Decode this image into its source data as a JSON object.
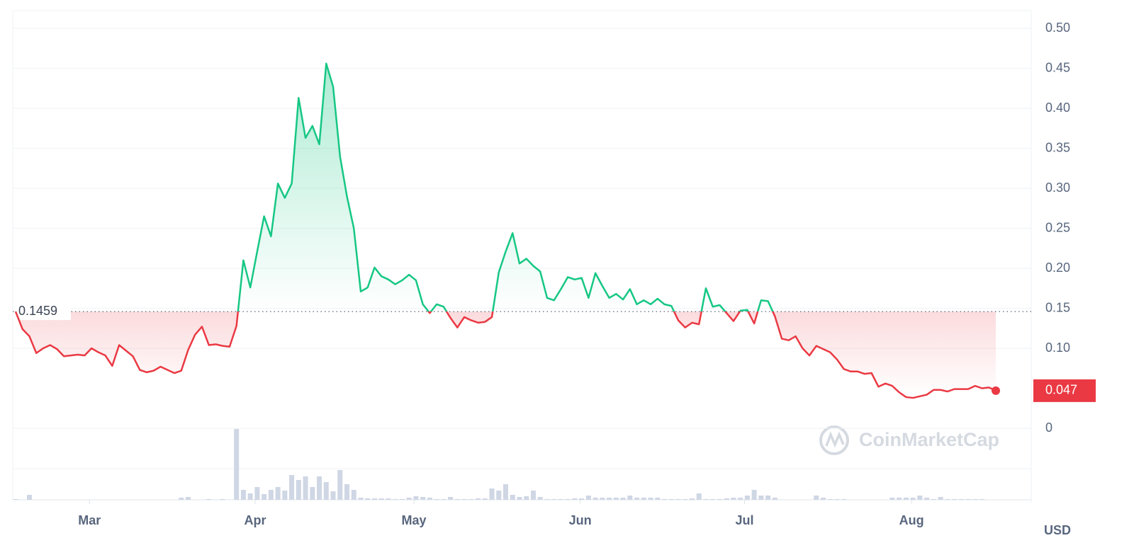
{
  "chart_data": {
    "type": "line",
    "reference": 0.1459,
    "currency": "USD",
    "watermark": "CoinMarketCap",
    "up_color": "#16c784",
    "down_color": "#ea3943",
    "volume_color": "#cfd6e4",
    "ylim": [
      0,
      0.5
    ],
    "yticks": [
      0,
      {
        "value": 0.1,
        "label": "0.10"
      },
      0.15,
      {
        "value": 0.2,
        "label": "0.20"
      },
      0.25,
      {
        "value": 0.3,
        "label": "0.30"
      },
      0.35,
      {
        "value": 0.4,
        "label": "0.40"
      },
      0.45,
      {
        "value": 0.5,
        "label": "0.50"
      }
    ],
    "grid": true,
    "xlim": [
      0,
      142
    ],
    "xticks": [
      {
        "value": 10.7,
        "label": "Mar"
      },
      {
        "value": 34.7,
        "label": "Apr"
      },
      {
        "value": 57.7,
        "label": "May"
      },
      {
        "value": 81.8,
        "label": "Jun"
      },
      {
        "value": 105.6,
        "label": "Jul"
      },
      {
        "value": 129.8,
        "label": "Aug"
      }
    ],
    "values": [
      0.146,
      0.124,
      0.115,
      0.094,
      0.1,
      0.104,
      0.099,
      0.09,
      0.091,
      0.092,
      0.091,
      0.1,
      0.095,
      0.091,
      0.078,
      0.104,
      0.097,
      0.09,
      0.073,
      0.07,
      0.072,
      0.077,
      0.073,
      0.069,
      0.072,
      0.098,
      0.117,
      0.127,
      0.104,
      0.105,
      0.103,
      0.102,
      0.128,
      0.21,
      0.176,
      0.221,
      0.265,
      0.24,
      0.306,
      0.288,
      0.306,
      0.413,
      0.363,
      0.378,
      0.355,
      0.456,
      0.427,
      0.34,
      0.29,
      0.25,
      0.171,
      0.176,
      0.201,
      0.19,
      0.186,
      0.18,
      0.185,
      0.192,
      0.185,
      0.155,
      0.144,
      0.155,
      0.152,
      0.138,
      0.126,
      0.139,
      0.135,
      0.132,
      0.133,
      0.139,
      0.195,
      0.221,
      0.244,
      0.206,
      0.212,
      0.203,
      0.196,
      0.163,
      0.16,
      0.174,
      0.189,
      0.186,
      0.188,
      0.163,
      0.194,
      0.178,
      0.163,
      0.168,
      0.161,
      0.174,
      0.155,
      0.16,
      0.155,
      0.162,
      0.155,
      0.153,
      0.135,
      0.126,
      0.132,
      0.13,
      0.175,
      0.152,
      0.154,
      0.144,
      0.134,
      0.147,
      0.148,
      0.131,
      0.16,
      0.159,
      0.14,
      0.112,
      0.11,
      0.115,
      0.1,
      0.091,
      0.103,
      0.099,
      0.095,
      0.086,
      0.074,
      0.071,
      0.071,
      0.068,
      0.069,
      0.052,
      0.056,
      0.053,
      0.045,
      0.039,
      0.038,
      0.04,
      0.042,
      0.048,
      0.048,
      0.046,
      0.049,
      0.049,
      0.049,
      0.053,
      0.05,
      0.051,
      0.047
    ],
    "volume": {
      "ylim": [
        0,
        100
      ],
      "values": [
        1,
        0,
        7,
        0,
        0,
        0,
        0,
        0,
        0,
        0,
        0,
        0,
        0,
        0,
        0,
        0,
        0,
        0,
        0,
        0,
        0,
        0,
        0,
        0,
        3,
        4,
        0,
        0,
        1,
        0,
        1,
        0,
        100,
        14,
        9,
        18,
        8,
        14,
        18,
        13,
        35,
        28,
        33,
        18,
        33,
        25,
        12,
        42,
        22,
        14,
        3,
        2,
        2,
        2,
        2,
        1,
        1,
        3,
        5,
        4,
        3,
        1,
        1,
        4,
        1,
        1,
        1,
        2,
        2,
        16,
        13,
        22,
        7,
        4,
        5,
        13,
        4,
        1,
        1,
        1,
        1,
        2,
        2,
        6,
        3,
        3,
        3,
        3,
        3,
        6,
        3,
        3,
        3,
        3,
        1,
        1,
        1,
        1,
        2,
        9,
        1,
        1,
        1,
        2,
        3,
        3,
        6,
        14,
        6,
        6,
        3,
        0,
        0,
        0,
        0,
        0,
        6,
        3,
        1,
        1,
        1,
        0,
        0,
        0,
        0,
        0,
        0,
        3,
        3,
        3,
        3,
        6,
        3,
        1,
        4,
        1,
        1,
        1,
        1,
        1,
        1,
        0,
        0
      ]
    }
  }
}
